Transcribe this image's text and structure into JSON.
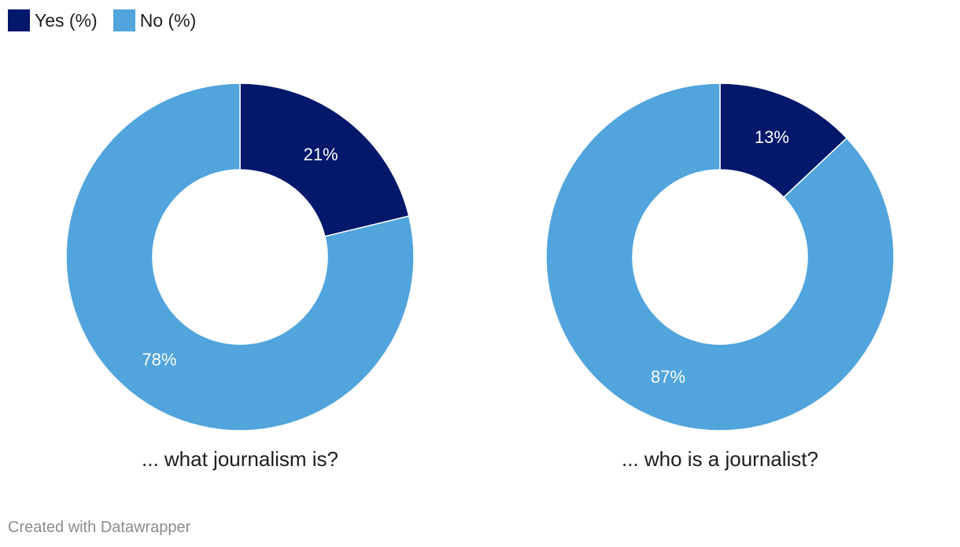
{
  "legend": [
    {
      "label": "Yes (%)",
      "color": "#03176b"
    },
    {
      "label": "No (%)",
      "color": "#51a4dc"
    }
  ],
  "chart_data": [
    {
      "type": "pie",
      "title": "... what journalism is?",
      "slices": [
        {
          "name": "Yes (%)",
          "value": 21,
          "label": "21%",
          "color": "#03176b"
        },
        {
          "name": "No (%)",
          "value": 78,
          "label": "78%",
          "color": "#51a4dc"
        }
      ]
    },
    {
      "type": "pie",
      "title": "... who is a journalist?",
      "slices": [
        {
          "name": "Yes (%)",
          "value": 13,
          "label": "13%",
          "color": "#03176b"
        },
        {
          "name": "No (%)",
          "value": 87,
          "label": "87%",
          "color": "#51a4dc"
        }
      ]
    }
  ],
  "footer": {
    "credit": "Created with Datawrapper"
  }
}
